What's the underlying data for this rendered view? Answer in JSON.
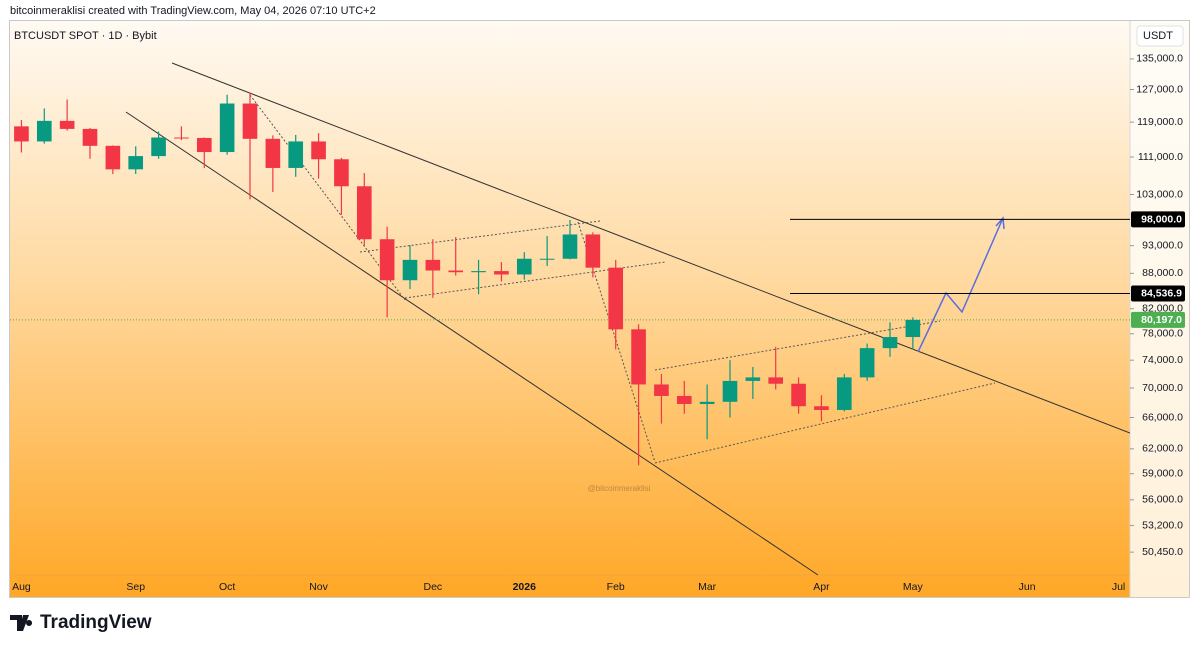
{
  "header": {
    "credit": "bitcoinmeraklisi created with TradingView.com, May 04, 2026 07:10 UTC+2"
  },
  "chart_data": {
    "type": "candlestick",
    "title": "BTCUSDT SPOT · 1D · Bybit",
    "y_unit": "USDT",
    "watermark": "@bitcoinmeraklisi",
    "log_scale": true,
    "up_color": "#089981",
    "down_color": "#f23645",
    "categories": [
      "Aug",
      null,
      null,
      null,
      null,
      "Sep",
      null,
      null,
      null,
      "Oct",
      null,
      null,
      null,
      "Nov",
      null,
      null,
      null,
      null,
      "Dec",
      null,
      null,
      null,
      "2026",
      null,
      null,
      null,
      "Feb",
      null,
      null,
      null,
      "Mar",
      null,
      null,
      null,
      null,
      "Apr",
      null,
      null,
      null,
      "May",
      null,
      null,
      null,
      null,
      "Jun",
      null,
      null,
      null,
      "Jul"
    ],
    "open": [
      118000,
      114500,
      119300,
      117400,
      113500,
      108300,
      111200,
      115400,
      115300,
      112100,
      123500,
      115100,
      108600,
      114500,
      110500,
      104700,
      94200,
      86800,
      90400,
      88500,
      88200,
      88400,
      87800,
      90600,
      90600,
      95100,
      89000,
      78700,
      70500,
      68900,
      67800,
      68100,
      71000,
      71500,
      70600,
      67500,
      67000,
      71500,
      75800,
      77500,
      null,
      null,
      null,
      null,
      null,
      null,
      null,
      null,
      null
    ],
    "high": [
      119500,
      122300,
      124500,
      117600,
      113600,
      113400,
      116800,
      118000,
      115400,
      125700,
      126200,
      115900,
      116000,
      116400,
      110800,
      107500,
      96600,
      93100,
      94200,
      94600,
      90400,
      90000,
      91800,
      94800,
      97900,
      95500,
      90400,
      79500,
      72000,
      71000,
      70500,
      74000,
      73000,
      76000,
      71500,
      69000,
      72000,
      76500,
      79800,
      80600,
      null,
      null,
      null,
      null,
      null,
      null,
      null,
      null,
      null
    ],
    "low": [
      112000,
      114000,
      117000,
      110600,
      107300,
      107300,
      110600,
      114800,
      108600,
      111500,
      102000,
      103500,
      106700,
      106300,
      98900,
      93000,
      80600,
      85300,
      83800,
      87600,
      84400,
      86600,
      86900,
      89300,
      90500,
      87300,
      75600,
      60000,
      65200,
      66500,
      63200,
      66000,
      68500,
      69800,
      66500,
      65500,
      66800,
      71000,
      74500,
      75600,
      null,
      null,
      null,
      null,
      null,
      null,
      null,
      null,
      null
    ],
    "close": [
      114500,
      119300,
      117400,
      113500,
      108300,
      111200,
      115400,
      115300,
      112100,
      123500,
      115100,
      108600,
      114500,
      110500,
      104700,
      94200,
      86800,
      90400,
      88500,
      88200,
      88400,
      87800,
      90600,
      90600,
      95100,
      89000,
      78700,
      70500,
      68900,
      67800,
      68100,
      71000,
      71500,
      70600,
      67500,
      67000,
      71500,
      75800,
      77500,
      80197,
      null,
      null,
      null,
      null,
      null,
      null,
      null,
      null,
      null
    ],
    "ylim": [
      48200,
      145900
    ],
    "yticks": [
      {
        "value": 135000,
        "label": "135,000.0"
      },
      {
        "value": 127000,
        "label": "127,000.0"
      },
      {
        "value": 119000,
        "label": "119,000.0"
      },
      {
        "value": 111000,
        "label": "111,000.0"
      },
      {
        "value": 103000,
        "label": "103,000.0"
      },
      {
        "value": 93000,
        "label": "93,000.0"
      },
      {
        "value": 88000,
        "label": "88,000.0"
      },
      {
        "value": 82000,
        "label": "82,000.0"
      },
      {
        "value": 78000,
        "label": "78,000.0"
      },
      {
        "value": 74000,
        "label": "74,000.0"
      },
      {
        "value": 70000,
        "label": "70,000.0"
      },
      {
        "value": 66000,
        "label": "66,000.0"
      },
      {
        "value": 62000,
        "label": "62,000.0"
      },
      {
        "value": 59000,
        "label": "59,000.0"
      },
      {
        "value": 56000,
        "label": "56,000.0"
      },
      {
        "value": 53200,
        "label": "53,200.0"
      },
      {
        "value": 50450,
        "label": "50,450.0"
      }
    ],
    "price_levels": [
      {
        "value": 98000,
        "label": "98,000.0",
        "color": "#000000",
        "line": true
      },
      {
        "value": 84536.9,
        "label": "84,536.9",
        "color": "#000000",
        "line": true
      },
      {
        "value": 80197,
        "label": "80,197.0",
        "color": "#4caf50",
        "line": false
      }
    ]
  },
  "footer": {
    "brand": "TradingView"
  }
}
